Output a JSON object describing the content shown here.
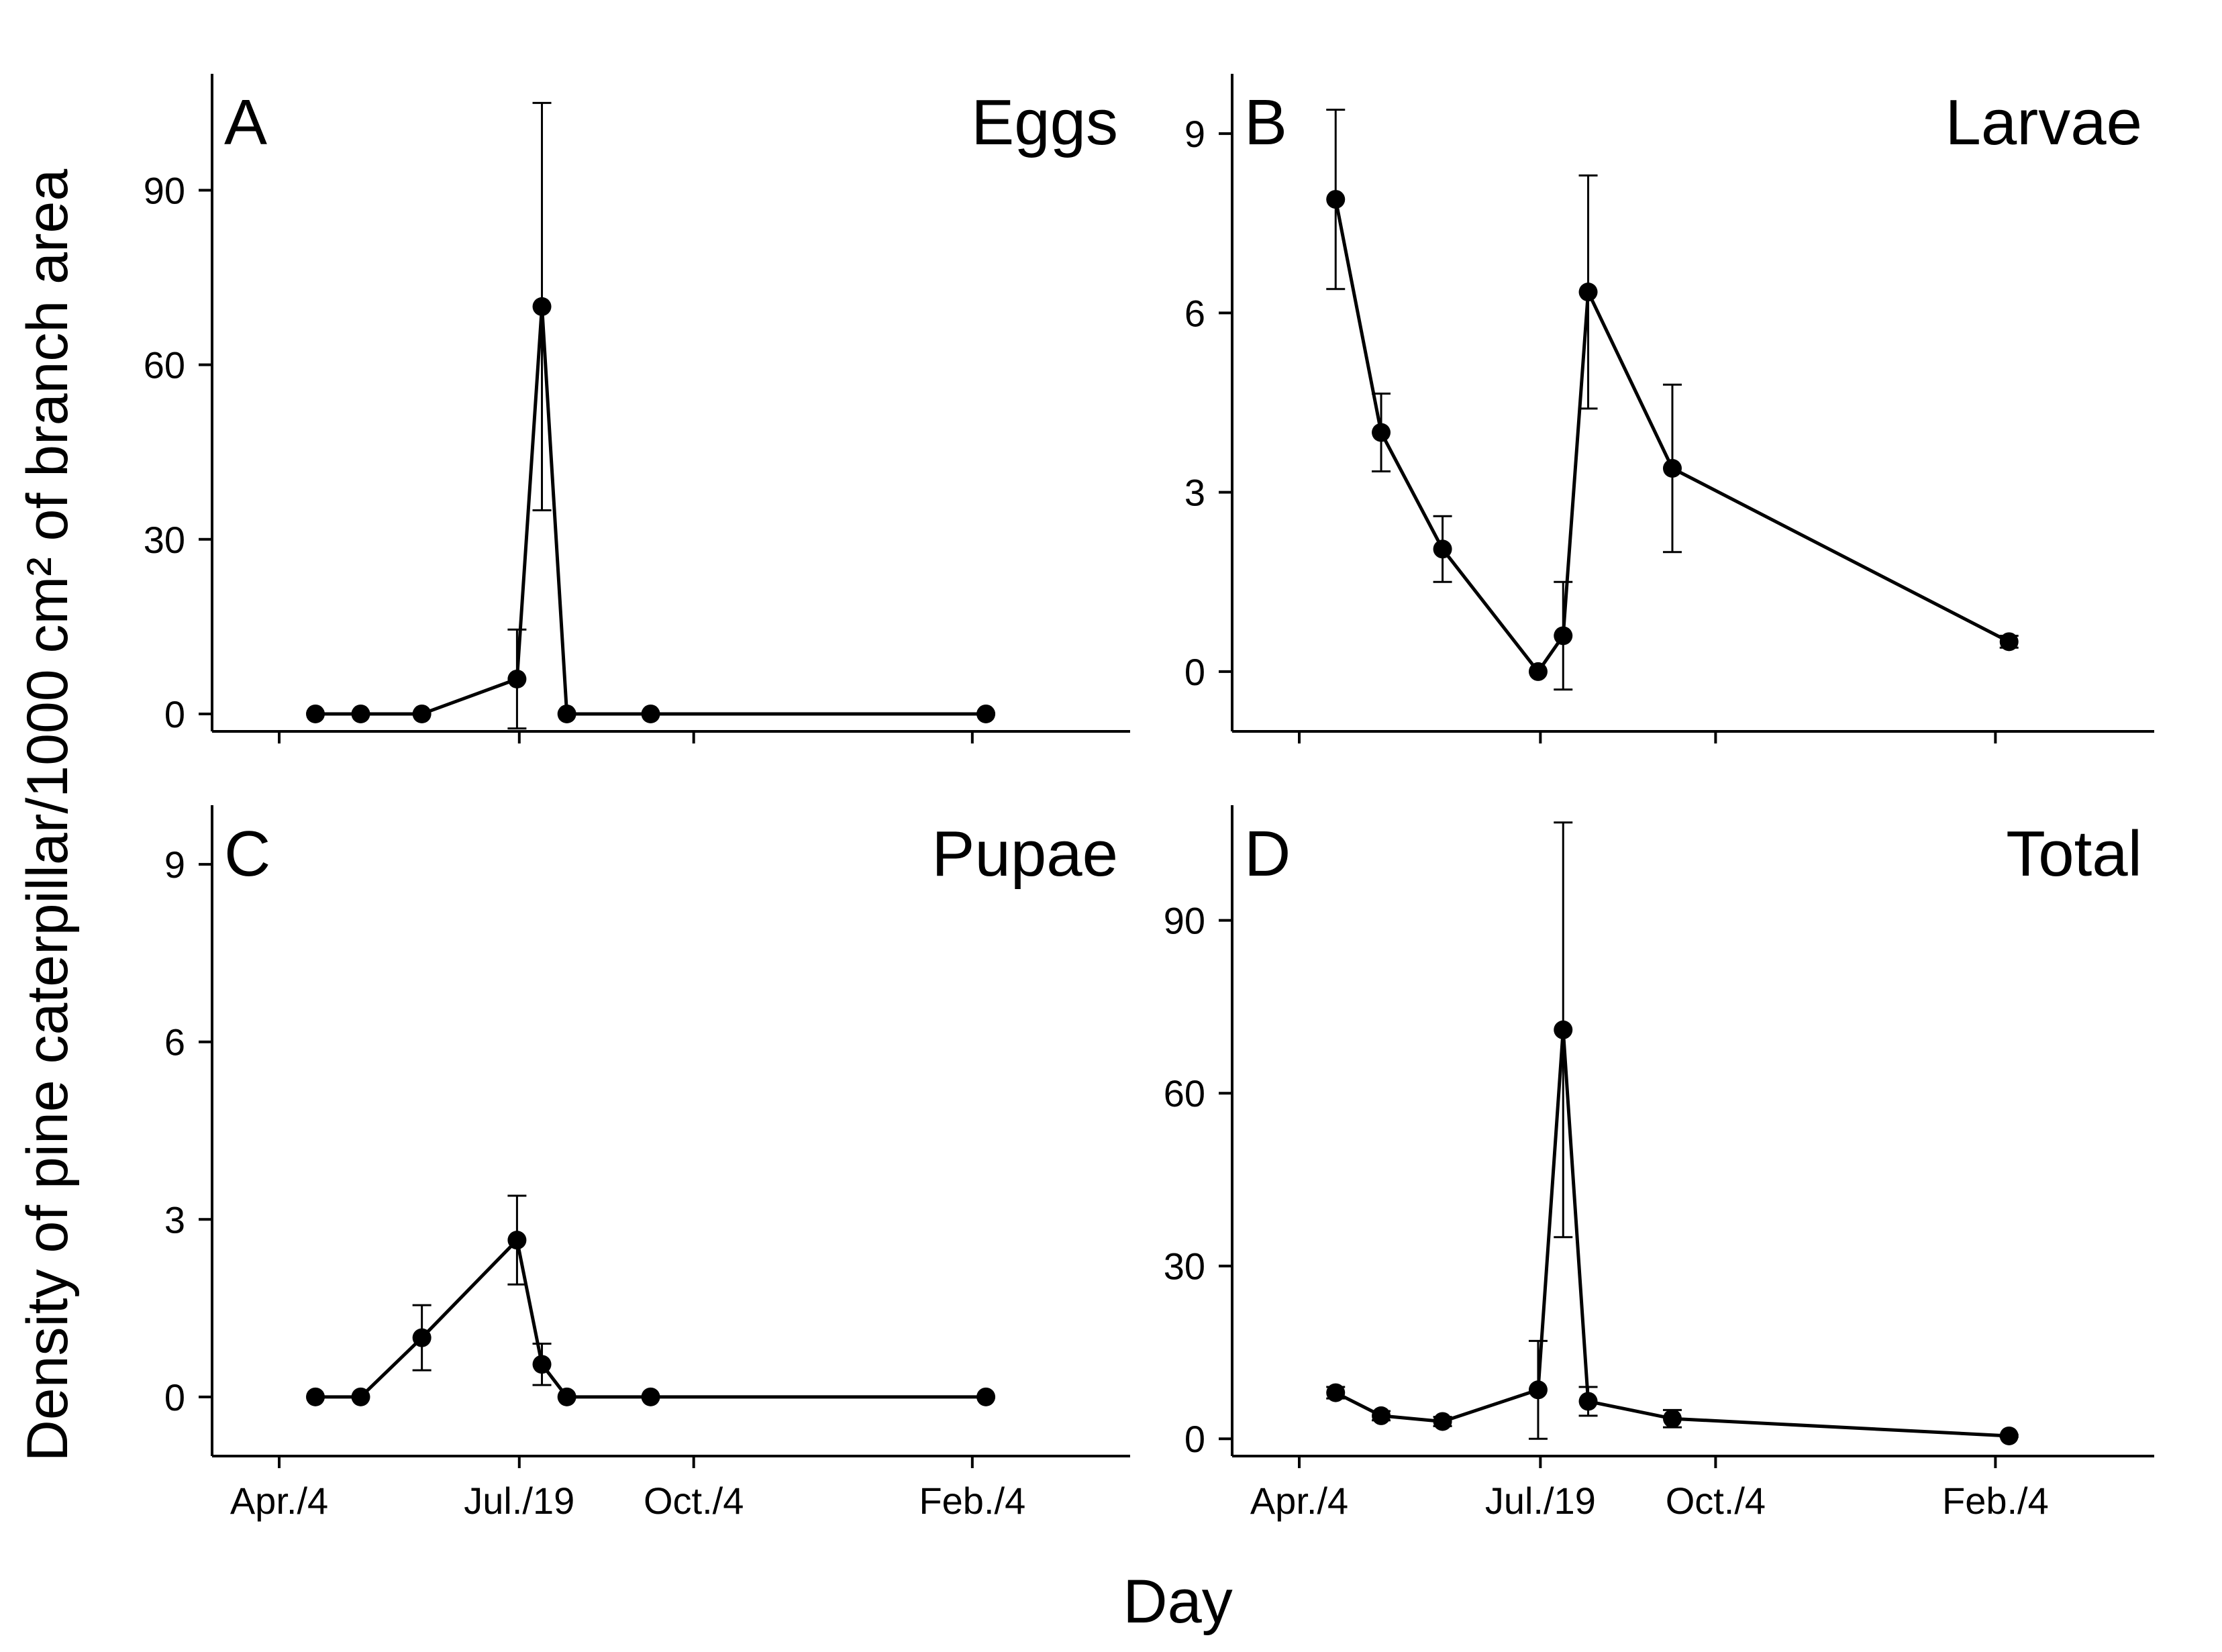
{
  "figure": {
    "ylabel": "Density of pine caterpillar/1000 cm² of branch area",
    "xlabel": "Day"
  },
  "chart_data": [
    {
      "type": "line",
      "letter": "A",
      "title": "Eggs",
      "ylim": [
        -3,
        110
      ],
      "yticks": [
        0,
        30,
        60,
        90
      ],
      "x_axis_tick_labels": [],
      "series": [
        {
          "x": [
            "Apr./20",
            "May/10",
            "Jun./6",
            "Jul./18",
            "Jul./29",
            "Aug./9",
            "Sep./15",
            "Feb./10"
          ],
          "y": [
            0,
            0,
            0,
            6,
            70,
            0,
            0,
            0
          ],
          "error": [
            0,
            0,
            0,
            8.5,
            35,
            0,
            0,
            0
          ]
        }
      ]
    },
    {
      "type": "line",
      "letter": "B",
      "title": "Larvae",
      "ylim": [
        -1,
        10
      ],
      "yticks": [
        0,
        3,
        6,
        9
      ],
      "x_axis_tick_labels": [],
      "series": [
        {
          "x": [
            "Apr./20",
            "May/10",
            "Jun./6",
            "Jul./18",
            "Jul./29",
            "Aug./9",
            "Sep./15",
            "Feb./10"
          ],
          "y": [
            7.9,
            4.0,
            2.05,
            0,
            0.6,
            6.35,
            3.4,
            0.5
          ],
          "error": [
            1.5,
            0.65,
            0.55,
            0,
            0.9,
            1.95,
            1.4,
            0.1
          ]
        }
      ]
    },
    {
      "type": "line",
      "letter": "C",
      "title": "Pupae",
      "ylim": [
        -1,
        10
      ],
      "yticks": [
        0,
        3,
        6,
        9
      ],
      "x_axis_tick_labels": [
        "Apr./4",
        "Jul./19",
        "Oct./4",
        "Feb./4"
      ],
      "series": [
        {
          "x": [
            "Apr./20",
            "May/10",
            "Jun./6",
            "Jul./18",
            "Jul./29",
            "Aug./9",
            "Sep./15",
            "Feb./10"
          ],
          "y": [
            0,
            0,
            1.0,
            2.65,
            0.55,
            0,
            0,
            0
          ],
          "error": [
            0,
            0,
            0.55,
            0.75,
            0.35,
            0,
            0,
            0
          ]
        }
      ]
    },
    {
      "type": "line",
      "letter": "D",
      "title": "Total",
      "ylim": [
        -3,
        110
      ],
      "yticks": [
        0,
        30,
        60,
        90
      ],
      "x_axis_tick_labels": [
        "Apr./4",
        "Jul./19",
        "Oct./4",
        "Feb./4"
      ],
      "series": [
        {
          "x": [
            "Apr./20",
            "May/10",
            "Jun./6",
            "Jul./18",
            "Jul./29",
            "Aug./9",
            "Sep./15",
            "Feb./10"
          ],
          "y": [
            8,
            4,
            3,
            8.5,
            71,
            6.5,
            3.5,
            0.5
          ],
          "error": [
            1,
            0.8,
            0.8,
            8.5,
            36,
            2.5,
            1.5,
            0.2
          ]
        }
      ]
    }
  ]
}
